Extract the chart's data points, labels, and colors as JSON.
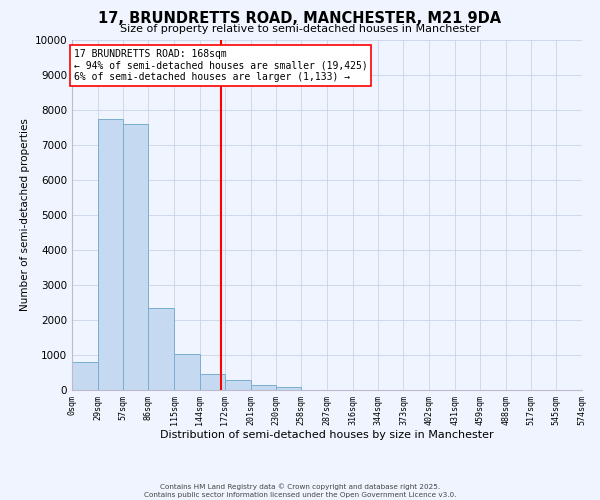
{
  "title": "17, BRUNDRETTS ROAD, MANCHESTER, M21 9DA",
  "subtitle": "Size of property relative to semi-detached houses in Manchester",
  "xlabel": "Distribution of semi-detached houses by size in Manchester",
  "ylabel": "Number of semi-detached properties",
  "bin_edges": [
    0,
    29,
    57,
    86,
    115,
    144,
    172,
    201,
    230,
    258,
    287,
    316,
    344,
    373,
    402,
    431,
    459,
    488,
    517,
    545,
    574
  ],
  "bin_counts": [
    800,
    7750,
    7600,
    2350,
    1020,
    450,
    280,
    150,
    100,
    0,
    0,
    0,
    0,
    0,
    0,
    0,
    0,
    0,
    0,
    0
  ],
  "bar_color": "#c5d9f0",
  "bar_edge_color": "#7aadce",
  "property_line_x": 168,
  "property_line_color": "red",
  "annotation_title": "17 BRUNDRETTS ROAD: 168sqm",
  "annotation_line1": "← 94% of semi-detached houses are smaller (19,425)",
  "annotation_line2": "6% of semi-detached houses are larger (1,133) →",
  "annotation_box_facecolor": "white",
  "annotation_box_edge": "red",
  "ylim": [
    0,
    10000
  ],
  "yticks": [
    0,
    1000,
    2000,
    3000,
    4000,
    5000,
    6000,
    7000,
    8000,
    9000,
    10000
  ],
  "tick_labels": [
    "0sqm",
    "29sqm",
    "57sqm",
    "86sqm",
    "115sqm",
    "144sqm",
    "172sqm",
    "201sqm",
    "230sqm",
    "258sqm",
    "287sqm",
    "316sqm",
    "344sqm",
    "373sqm",
    "402sqm",
    "431sqm",
    "459sqm",
    "488sqm",
    "517sqm",
    "545sqm",
    "574sqm"
  ],
  "footer_line1": "Contains HM Land Registry data © Crown copyright and database right 2025.",
  "footer_line2": "Contains public sector information licensed under the Open Government Licence v3.0.",
  "bg_color": "#f0f4ff",
  "grid_color": "#c8d4e8"
}
